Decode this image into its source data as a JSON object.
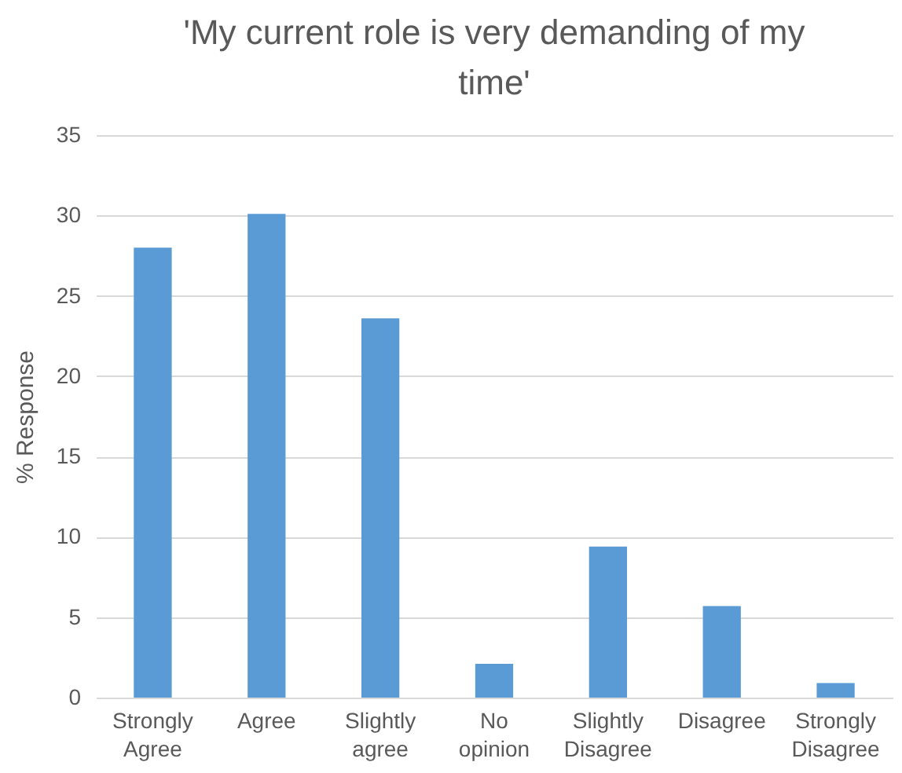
{
  "chart_data": {
    "type": "bar",
    "title": "'My current role is very demanding of my time'",
    "ylabel": "% Response",
    "categories": [
      "Strongly Agree",
      "Agree",
      "Slightly agree",
      "No opinion",
      "Slightly Disagree",
      "Disagree",
      "Strongly Disagree"
    ],
    "values": [
      28.0,
      30.1,
      23.6,
      2.1,
      9.4,
      5.7,
      0.9
    ],
    "color": "#5b9bd5",
    "ylim": [
      0,
      35
    ],
    "yticks": [
      0,
      5,
      10,
      15,
      20,
      25,
      30,
      35
    ],
    "grid": "y"
  }
}
